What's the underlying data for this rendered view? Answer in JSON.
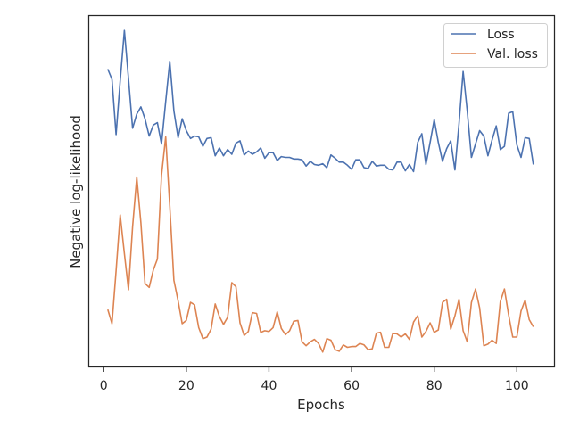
{
  "chart_data": {
    "type": "line",
    "title": "",
    "xlabel": "Epochs",
    "ylabel": "Negative log-likelihood",
    "xlim": [
      -3.5,
      109
    ],
    "xticks": [
      0,
      20,
      40,
      60,
      80,
      100
    ],
    "y_tick_labels_shown": false,
    "grid": false,
    "legend_position": "top-right",
    "x": [
      1,
      2,
      3,
      4,
      5,
      6,
      7,
      8,
      9,
      10,
      11,
      12,
      13,
      14,
      15,
      16,
      17,
      18,
      19,
      20,
      21,
      22,
      23,
      24,
      25,
      26,
      27,
      28,
      29,
      30,
      31,
      32,
      33,
      34,
      35,
      36,
      37,
      38,
      39,
      40,
      41,
      42,
      43,
      44,
      45,
      46,
      47,
      48,
      49,
      50,
      51,
      52,
      53,
      54,
      55,
      56,
      57,
      58,
      59,
      60,
      61,
      62,
      63,
      64,
      65,
      66,
      67,
      68,
      69,
      70,
      71,
      72,
      73,
      74,
      75,
      76,
      77,
      78,
      79,
      80,
      81,
      82,
      83,
      84,
      85,
      86,
      87,
      88,
      89,
      90,
      91,
      92,
      93,
      94,
      95,
      96,
      97,
      98,
      99,
      100,
      101,
      102,
      103,
      104
    ],
    "series": [
      {
        "name": "Loss",
        "color": "#4c72b0",
        "values": [
          6.93,
          6.8,
          6.1,
          6.78,
          7.42,
          6.81,
          6.18,
          6.36,
          6.45,
          6.3,
          6.08,
          6.22,
          6.25,
          5.98,
          6.52,
          7.03,
          6.4,
          6.06,
          6.3,
          6.15,
          6.05,
          6.08,
          6.07,
          5.95,
          6.05,
          6.06,
          5.83,
          5.93,
          5.83,
          5.91,
          5.85,
          5.99,
          6.02,
          5.84,
          5.89,
          5.85,
          5.88,
          5.93,
          5.8,
          5.87,
          5.87,
          5.77,
          5.82,
          5.81,
          5.81,
          5.79,
          5.79,
          5.78,
          5.7,
          5.76,
          5.72,
          5.71,
          5.73,
          5.68,
          5.84,
          5.8,
          5.75,
          5.75,
          5.71,
          5.66,
          5.78,
          5.78,
          5.68,
          5.67,
          5.76,
          5.7,
          5.71,
          5.71,
          5.66,
          5.65,
          5.75,
          5.75,
          5.64,
          5.72,
          5.63,
          6.0,
          6.11,
          5.72,
          6.0,
          6.29,
          6.0,
          5.76,
          5.92,
          6.02,
          5.65,
          6.24,
          6.9,
          6.4,
          5.81,
          5.98,
          6.15,
          6.08,
          5.83,
          6.03,
          6.21,
          5.91,
          5.95,
          6.37,
          6.39,
          5.97,
          5.81,
          6.06,
          6.05,
          5.72
        ]
      },
      {
        "name": "Val. loss",
        "color": "#dd8452",
        "values": [
          3.88,
          3.7,
          4.37,
          5.08,
          4.59,
          4.13,
          4.93,
          5.56,
          4.98,
          4.21,
          4.16,
          4.38,
          4.52,
          5.58,
          6.07,
          5.19,
          4.25,
          3.99,
          3.7,
          3.74,
          3.97,
          3.94,
          3.65,
          3.51,
          3.53,
          3.63,
          3.95,
          3.79,
          3.69,
          3.78,
          4.22,
          4.17,
          3.71,
          3.55,
          3.6,
          3.84,
          3.83,
          3.59,
          3.61,
          3.6,
          3.65,
          3.85,
          3.64,
          3.56,
          3.61,
          3.73,
          3.74,
          3.47,
          3.42,
          3.47,
          3.5,
          3.45,
          3.34,
          3.51,
          3.49,
          3.37,
          3.35,
          3.43,
          3.4,
          3.41,
          3.41,
          3.45,
          3.43,
          3.37,
          3.38,
          3.58,
          3.59,
          3.4,
          3.4,
          3.58,
          3.57,
          3.53,
          3.57,
          3.5,
          3.72,
          3.8,
          3.53,
          3.6,
          3.71,
          3.59,
          3.62,
          3.97,
          4.01,
          3.63,
          3.8,
          4.01,
          3.61,
          3.47,
          3.97,
          4.14,
          3.9,
          3.42,
          3.44,
          3.49,
          3.45,
          3.98,
          4.14,
          3.81,
          3.53,
          3.53,
          3.86,
          4.0,
          3.75,
          3.66
        ]
      }
    ]
  }
}
